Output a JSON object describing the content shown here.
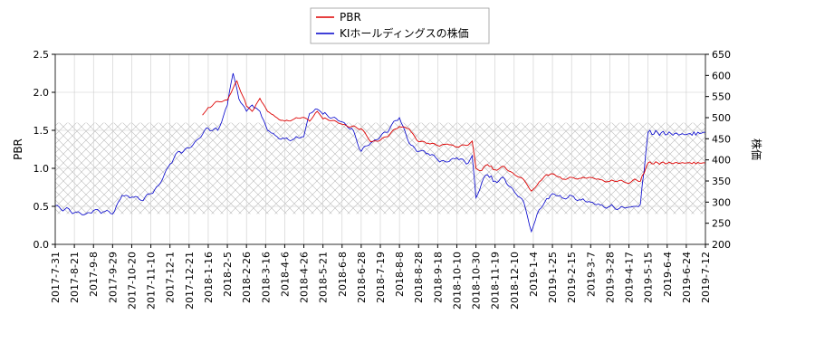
{
  "chart_data": {
    "type": "line",
    "title": "",
    "ylabel": "PBR",
    "y2label": "株価",
    "ylim": [
      0.0,
      2.5
    ],
    "y2lim": [
      200,
      650
    ],
    "yticks": [
      "0.0",
      "0.5",
      "1.0",
      "1.5",
      "2.0",
      "2.5"
    ],
    "y2ticks": [
      "200",
      "250",
      "300",
      "350",
      "400",
      "450",
      "500",
      "550",
      "600",
      "650"
    ],
    "xticks": [
      "2017-7-31",
      "2017-8-21",
      "2017-9-8",
      "2017-9-29",
      "2017-10-20",
      "2017-11-10",
      "2017-12-1",
      "2017-12-21",
      "2018-1-16",
      "2018-2-5",
      "2018-2-26",
      "2018-3-16",
      "2018-4-6",
      "2018-4-26",
      "2018-5-21",
      "2018-6-8",
      "2018-6-28",
      "2018-7-19",
      "2018-8-8",
      "2018-8-28",
      "2018-9-18",
      "2018-10-10",
      "2018-10-30",
      "2018-11-19",
      "2018-12-10",
      "2019-1-4",
      "2019-1-25",
      "2019-2-15",
      "2019-3-7",
      "2019-3-28",
      "2019-4-17",
      "2019-5-15",
      "2019-6-4",
      "2019-6-24",
      "2019-7-12"
    ],
    "grid": true,
    "legend_position": "top-center",
    "band": {
      "y_from": 0.4,
      "y_to": 1.6,
      "fill": "cross-hatch"
    },
    "series": [
      {
        "name": "PBR",
        "axis": "left",
        "color": "#dd0000",
        "x": [
          7.7,
          8.0,
          8.5,
          9.0,
          9.5,
          10.0,
          10.3,
          10.7,
          11.1,
          11.5,
          12.0,
          12.5,
          13.0,
          13.3,
          13.7,
          14.0,
          14.5,
          15.0,
          15.5,
          16.0,
          16.5,
          17.0,
          17.5,
          18.0,
          18.5,
          19.0,
          19.5,
          20.0,
          20.5,
          21.0,
          21.5,
          21.8,
          22.0,
          22.3,
          22.6,
          23.0,
          23.5,
          24.0,
          24.5,
          24.9,
          25.2,
          25.6,
          26.0,
          26.5,
          27.0,
          27.5,
          28.0,
          28.5,
          29.0,
          29.5,
          30.0,
          30.3,
          30.6,
          31.0,
          33.0,
          34.0,
          35.0
        ],
        "y": [
          1.7,
          1.8,
          1.88,
          1.9,
          2.15,
          1.82,
          1.75,
          1.92,
          1.75,
          1.68,
          1.62,
          1.65,
          1.67,
          1.62,
          1.75,
          1.65,
          1.63,
          1.58,
          1.55,
          1.52,
          1.35,
          1.37,
          1.45,
          1.55,
          1.52,
          1.35,
          1.33,
          1.3,
          1.32,
          1.28,
          1.3,
          1.36,
          1.0,
          0.97,
          1.05,
          0.98,
          1.02,
          0.92,
          0.85,
          0.7,
          0.78,
          0.9,
          0.93,
          0.86,
          0.88,
          0.87,
          0.88,
          0.85,
          0.83,
          0.84,
          0.8,
          0.86,
          0.83,
          1.07,
          1.07,
          1.07,
          1.07
        ]
      },
      {
        "name": "KIホールディングスの株価",
        "axis": "right",
        "color": "#0000cc",
        "x": [
          0.0,
          0.5,
          1.0,
          1.5,
          2.0,
          2.5,
          3.0,
          3.5,
          4.0,
          4.5,
          5.0,
          5.5,
          6.0,
          6.5,
          7.0,
          7.5,
          8.0,
          8.5,
          9.0,
          9.3,
          9.6,
          10.0,
          10.3,
          10.7,
          11.1,
          11.5,
          12.0,
          12.5,
          13.0,
          13.3,
          13.7,
          14.0,
          14.5,
          15.0,
          15.5,
          16.0,
          16.5,
          17.0,
          17.5,
          18.0,
          18.5,
          19.0,
          19.5,
          20.0,
          20.5,
          21.0,
          21.5,
          21.8,
          22.0,
          22.3,
          22.6,
          23.0,
          23.5,
          24.0,
          24.5,
          24.9,
          25.2,
          25.6,
          26.0,
          26.5,
          27.0,
          27.5,
          28.0,
          28.5,
          29.0,
          29.5,
          30.0,
          30.3,
          30.6,
          31.0,
          33.0,
          34.0,
          35.0
        ],
        "y": [
          292,
          283,
          275,
          270,
          280,
          277,
          272,
          316,
          312,
          304,
          320,
          345,
          390,
          420,
          428,
          450,
          475,
          470,
          530,
          605,
          545,
          515,
          530,
          515,
          470,
          458,
          450,
          450,
          455,
          510,
          520,
          508,
          500,
          490,
          475,
          420,
          440,
          455,
          475,
          500,
          440,
          420,
          415,
          400,
          395,
          405,
          390,
          410,
          310,
          345,
          365,
          350,
          355,
          325,
          300,
          230,
          272,
          300,
          320,
          310,
          315,
          305,
          300,
          293,
          290,
          285,
          288,
          290,
          295,
          465,
          460,
          465,
          465
        ]
      }
    ]
  }
}
